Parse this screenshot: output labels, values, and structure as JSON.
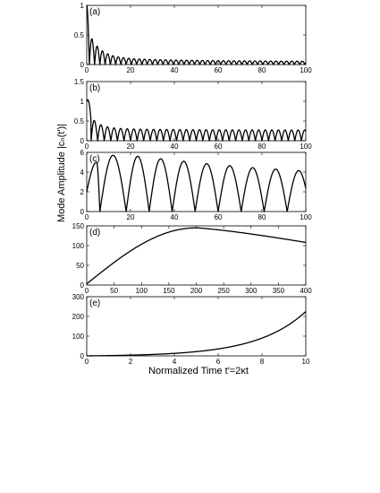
{
  "figure": {
    "ylabel": "Mode Amplitude |cₙ(t′)|",
    "xlabel": "Normalized Time t′=2κt",
    "line_color": "#000000"
  },
  "chart_data": [
    {
      "type": "line",
      "panel_label": "(a)",
      "xlim": [
        0,
        100
      ],
      "ylim": [
        0,
        1
      ],
      "xticks": [
        0,
        20,
        40,
        60,
        80,
        100
      ],
      "yticks": [
        0,
        0.5,
        1
      ],
      "ytick_labels": [
        "0",
        "0.5",
        "1"
      ],
      "series": [
        {
          "description_points": [
            [
              0,
              1.0
            ],
            [
              2.6,
              0.4
            ],
            [
              4.7,
              0.3
            ],
            [
              7.0,
              0.24
            ],
            [
              20,
              0.12
            ],
            [
              40,
              0.08
            ],
            [
              60,
              0.07
            ],
            [
              80,
              0.06
            ],
            [
              100,
              0.05
            ]
          ],
          "shape": "rectified damped oscillation, period ~2.4, first zero ~1.2"
        }
      ]
    },
    {
      "type": "line",
      "panel_label": "(b)",
      "xlim": [
        0,
        100
      ],
      "ylim": [
        0,
        1.5
      ],
      "xticks": [
        0,
        20,
        40,
        60,
        80,
        100
      ],
      "yticks": [
        0,
        0.5,
        1,
        1.5
      ],
      "ytick_labels": [
        "0",
        "0.5",
        "1",
        "1.5"
      ],
      "series": [
        {
          "description_points": [
            [
              0,
              1.0
            ],
            [
              0.8,
              1.1
            ],
            [
              3,
              0.55
            ],
            [
              5,
              0.45
            ],
            [
              20,
              0.33
            ],
            [
              40,
              0.3
            ],
            [
              60,
              0.29
            ],
            [
              80,
              0.28
            ],
            [
              100,
              0.28
            ]
          ],
          "shape": "rectified damped oscillation, period ~3, first zero ~2"
        }
      ]
    },
    {
      "type": "line",
      "panel_label": "(c)",
      "xlim": [
        0,
        100
      ],
      "ylim": [
        0,
        6
      ],
      "xticks": [
        0,
        20,
        40,
        60,
        80,
        100
      ],
      "yticks": [
        0,
        2,
        4,
        6
      ],
      "ytick_labels": [
        "0",
        "2",
        "4",
        "6"
      ],
      "series": [
        {
          "description_points": [
            [
              0,
              2.0
            ],
            [
              3,
              4.5
            ],
            [
              4.5,
              5.0
            ],
            [
              6,
              0.0
            ],
            [
              14,
              5.7
            ],
            [
              18,
              0.0
            ],
            [
              50,
              4.8
            ],
            [
              97,
              3.9
            ],
            [
              100,
              1.0
            ]
          ],
          "shape": "rectified oscillation, period ~10, slowly decaying envelope"
        }
      ]
    },
    {
      "type": "line",
      "panel_label": "(d)",
      "xlim": [
        0,
        400
      ],
      "ylim": [
        0,
        150
      ],
      "xticks": [
        0,
        50,
        100,
        150,
        200,
        250,
        300,
        350,
        400
      ],
      "yticks": [
        0,
        50,
        100,
        150
      ],
      "ytick_labels": [
        "0",
        "50",
        "100",
        "150"
      ],
      "series": [
        {
          "description_points": [
            [
              0,
              3
            ],
            [
              50,
              68
            ],
            [
              100,
              110
            ],
            [
              150,
              138
            ],
            [
              200,
              145
            ],
            [
              250,
              143
            ],
            [
              300,
              134
            ],
            [
              350,
              122
            ],
            [
              400,
              108
            ]
          ],
          "shape": "smooth rise to peak ~145 near x=200, then slow decline"
        }
      ]
    },
    {
      "type": "line",
      "panel_label": "(e)",
      "xlim": [
        0,
        10
      ],
      "ylim": [
        0,
        300
      ],
      "xticks": [
        0,
        2,
        4,
        6,
        8,
        10
      ],
      "yticks": [
        0,
        100,
        200,
        300
      ],
      "ytick_labels": [
        "0",
        "100",
        "200",
        "300"
      ],
      "series": [
        {
          "description_points": [
            [
              0,
              0
            ],
            [
              2,
              5
            ],
            [
              4,
              16
            ],
            [
              6,
              38
            ],
            [
              8,
              90
            ],
            [
              9,
              140
            ],
            [
              10,
              225
            ]
          ],
          "shape": "monotonic growth, roughly exponential"
        }
      ]
    }
  ]
}
